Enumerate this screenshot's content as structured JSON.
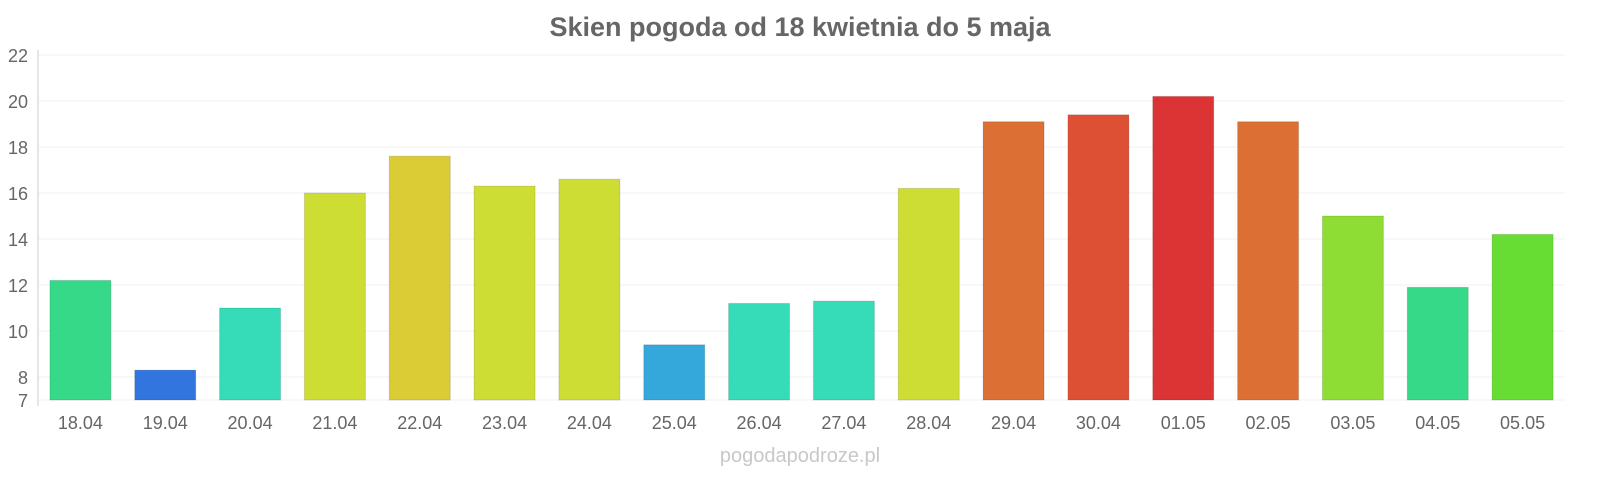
{
  "chart_data": {
    "type": "bar",
    "title": "Skien pogoda od 18 kwietnia do 5 maja",
    "categories": [
      "18.04",
      "19.04",
      "20.04",
      "21.04",
      "22.04",
      "23.04",
      "24.04",
      "25.04",
      "26.04",
      "27.04",
      "28.04",
      "29.04",
      "30.04",
      "01.05",
      "02.05",
      "03.05",
      "04.05",
      "05.05"
    ],
    "values": [
      12.2,
      8.3,
      11.0,
      16.0,
      17.6,
      16.3,
      16.6,
      9.4,
      11.2,
      11.3,
      16.2,
      19.1,
      19.4,
      20.2,
      19.1,
      15.0,
      11.9,
      14.2
    ],
    "colors": [
      "#36d988",
      "#3275de",
      "#36dbb8",
      "#cedd34",
      "#dbcb34",
      "#cedd34",
      "#cedd34",
      "#35a8db",
      "#36dbb8",
      "#36dbb8",
      "#cedd34",
      "#dc7034",
      "#dd5034",
      "#dc3434",
      "#dc7034",
      "#8ddd34",
      "#36d988",
      "#67dd34"
    ],
    "yticks": [
      7,
      8,
      10,
      12,
      14,
      16,
      18,
      20,
      22
    ],
    "ylim": [
      7,
      22
    ],
    "xlabel": "",
    "ylabel": "",
    "grid": true,
    "legend": "none"
  },
  "watermark": "pogodapodroze.pl"
}
